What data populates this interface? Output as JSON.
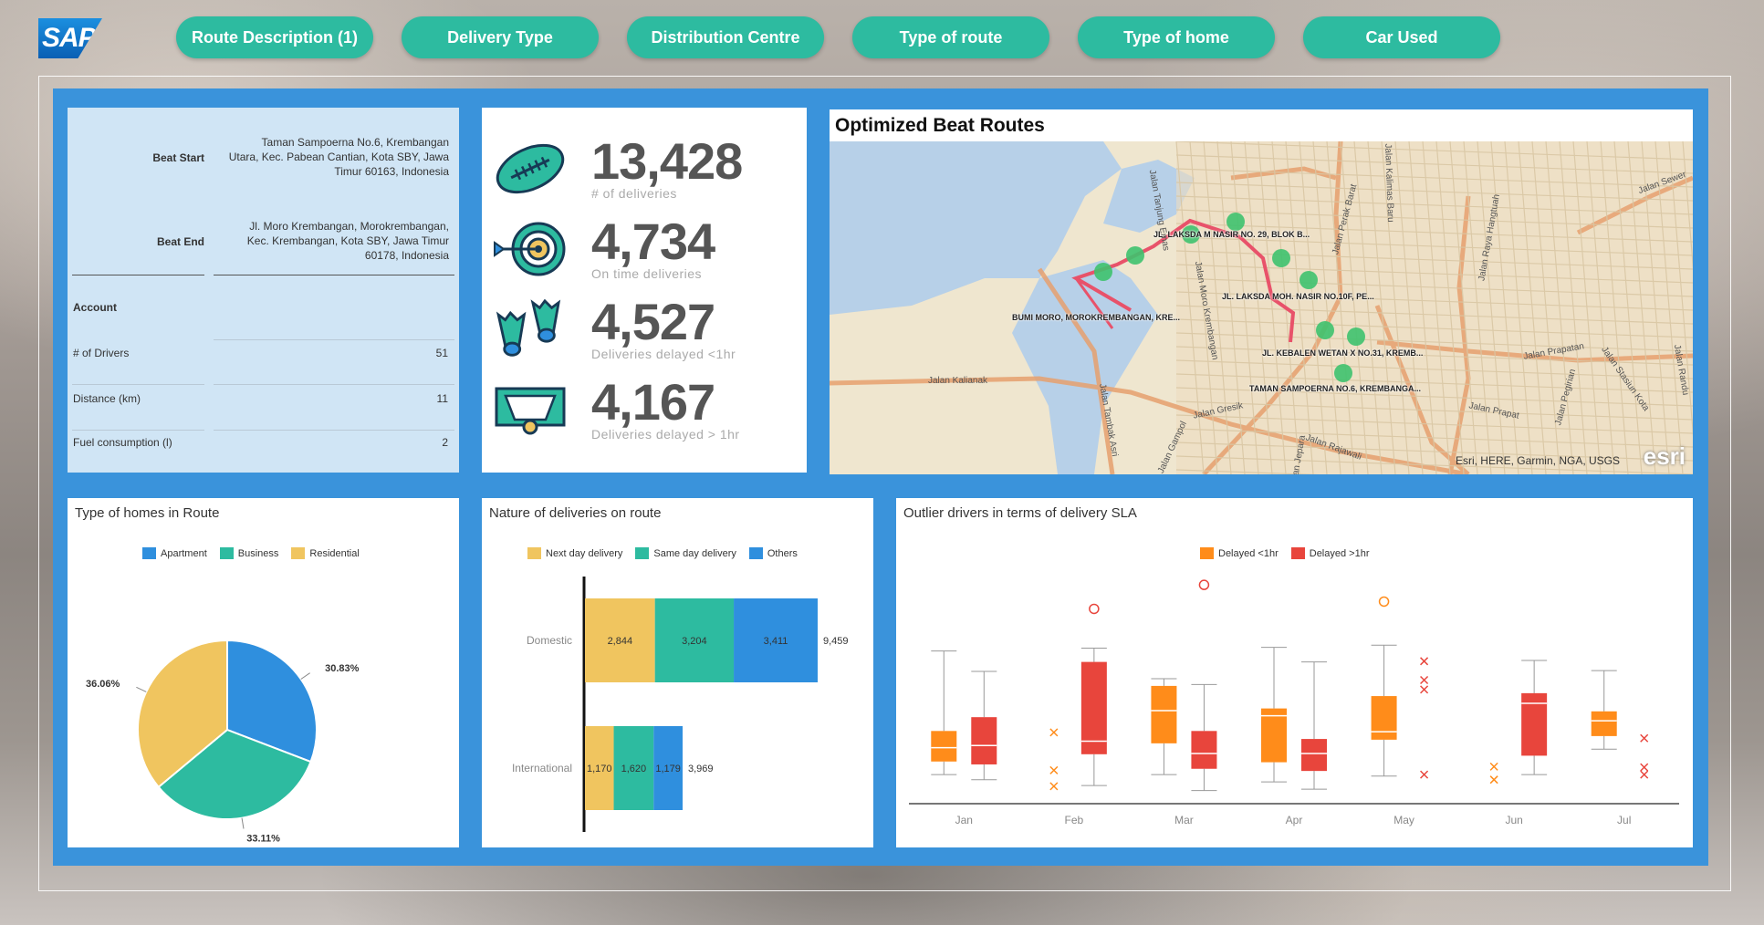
{
  "nav": {
    "items": [
      "Route Description (1)",
      "Delivery Type",
      "Distribution Centre",
      "Type of route",
      "Type of home",
      "Car Used"
    ]
  },
  "logo": "SAP",
  "beat": {
    "start_label": "Beat Start",
    "start_lines": [
      "Taman Sampoerna No.6, Krembangan",
      "Utara, Kec. Pabean Cantian, Kota SBY, Jawa",
      "Timur 60163, Indonesia"
    ],
    "end_label": "Beat End",
    "end_lines": [
      "Jl. Moro Krembangan, Morokrembangan,",
      "Kec. Krembangan, Kota SBY, Jawa Timur",
      "60178, Indonesia"
    ],
    "account_label": "Account",
    "drivers_label": "# of Drivers",
    "drivers_value": "51",
    "distance_label": "Distance (km)",
    "distance_value": "11",
    "fuel_label": "Fuel consumption (l)",
    "fuel_value": "2"
  },
  "kpis": [
    {
      "value": "13,428",
      "label": "# of deliveries",
      "icon": "football-icon"
    },
    {
      "value": "4,734",
      "label": "On time deliveries",
      "icon": "target-icon"
    },
    {
      "value": "4,527",
      "label": "Deliveries delayed <1hr",
      "icon": "flippers-icon"
    },
    {
      "value": "4,167",
      "label": "Deliveries delayed > 1hr",
      "icon": "goal-icon"
    }
  ],
  "map": {
    "title": "Optimized Beat Routes",
    "stops": [
      "JL. LAKSDA M NASIR NO. 29, BLOK B...",
      "JL. LAKSDA MOH. NASIR NO.10F, PE...",
      "BUMI MORO, MOROKREMBANGAN, KRE...",
      "JL. KEBALEN WETAN X NO.31, KREMB...",
      "TAMAN SAMPOERNA NO.6, KREMBANGA..."
    ],
    "streets": [
      "Jalan Kalianak",
      "Jalan Gresik",
      "Jalan Rajawali",
      "Jalan Prapat",
      "Jalan Sewer",
      "Jalan Tanjung Emas",
      "Jalan Moro Krembangan",
      "Jalan Kalimas Baru",
      "Jalan Perak Barat",
      "Jalan Pegirian",
      "Jalan Stasiun Kota",
      "Jalan Randu",
      "Jalan Raya Hangtuah",
      "Jalan Tambak Asri",
      "Jalan Jepara",
      "Jalan Gampol",
      "Jalan Prapatan"
    ],
    "attribution": "Esri, HERE, Garmin, NGA, USGS",
    "esri_logo": "esri"
  },
  "colors": {
    "teal": "#2dbba0",
    "blue": "#2f8fde",
    "yellow": "#f0c55f",
    "orange": "#ff8c1a",
    "red": "#e8453c"
  },
  "chart_data": [
    {
      "type": "pie",
      "title": "Type of homes in Route",
      "categories": [
        "Apartment",
        "Business",
        "Residential"
      ],
      "values": [
        30.83,
        33.11,
        36.06
      ],
      "labels": [
        "30.83%",
        "33.11%",
        "36.06%"
      ],
      "legend": "top"
    },
    {
      "type": "bar",
      "orientation": "horizontal",
      "stacked": true,
      "title": "Nature of deliveries on route",
      "categories": [
        "Domestic",
        "International"
      ],
      "series": [
        {
          "name": "Next day delivery",
          "values": [
            2844,
            1170
          ]
        },
        {
          "name": "Same day delivery",
          "values": [
            3204,
            1620
          ]
        },
        {
          "name": "Others",
          "values": [
            3411,
            1179
          ]
        }
      ],
      "totals": [
        9459,
        3969
      ],
      "legend": "top"
    },
    {
      "type": "boxplot",
      "title": "Outlier drivers in terms of delivery SLA",
      "categories": [
        "Jan",
        "Feb",
        "Mar",
        "Apr",
        "May",
        "Jun",
        "Jul"
      ],
      "legend": "top",
      "series": [
        {
          "name": "Delayed <1hr",
          "boxes": [
            {
              "cat": "Jan",
              "min": 40,
              "q1": 58,
              "median": 77,
              "q3": 100,
              "max": 210
            },
            {
              "cat": "Feb",
              "outliers_x": [
                24,
                46,
                98
              ]
            },
            {
              "cat": "Mar",
              "min": 40,
              "q1": 83,
              "median": 128,
              "q3": 162,
              "max": 172
            },
            {
              "cat": "Apr",
              "min": 30,
              "q1": 57,
              "median": 121,
              "q3": 131,
              "max": 215
            },
            {
              "cat": "May",
              "min": 38,
              "q1": 88,
              "median": 99,
              "q3": 148,
              "max": 218,
              "outliers_circle": [
                278
              ]
            },
            {
              "cat": "Jun",
              "outliers_x": [
                33,
                51
              ]
            },
            {
              "cat": "Jul",
              "min": 75,
              "q1": 93,
              "median": 114,
              "q3": 127,
              "max": 183
            }
          ]
        },
        {
          "name": "Delayed >1hr",
          "boxes": [
            {
              "cat": "Jan",
              "min": 33,
              "q1": 54,
              "median": 80,
              "q3": 119,
              "max": 182
            },
            {
              "cat": "Feb",
              "min": 25,
              "q1": 68,
              "median": 86,
              "q3": 195,
              "max": 214,
              "outliers_circle": [
                268
              ]
            },
            {
              "cat": "Mar",
              "min": 18,
              "q1": 48,
              "median": 69,
              "q3": 100,
              "max": 164,
              "outliers_circle": [
                301
              ]
            },
            {
              "cat": "Apr",
              "min": 20,
              "q1": 45,
              "median": 69,
              "q3": 89,
              "max": 195
            },
            {
              "cat": "May",
              "outliers_x": [
                40,
                157,
                170,
                196
              ]
            },
            {
              "cat": "Jun",
              "min": 40,
              "q1": 66,
              "median": 138,
              "q3": 152,
              "max": 197
            },
            {
              "cat": "Jul",
              "outliers_x": [
                40,
                50,
                90
              ]
            }
          ]
        }
      ]
    }
  ]
}
